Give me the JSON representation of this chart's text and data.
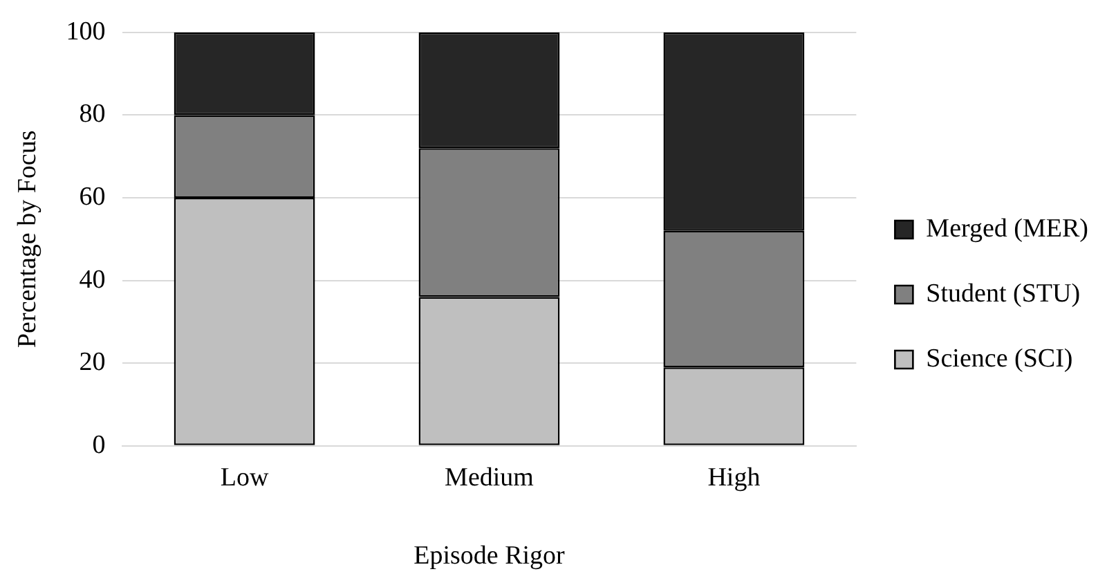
{
  "chart_data": {
    "type": "bar",
    "stacked": true,
    "xlabel": "Episode Rigor",
    "ylabel": "Percentage by Focus",
    "categories": [
      "Low",
      "Medium",
      "High"
    ],
    "series": [
      {
        "name": "Science (SCI)",
        "color": "#bfbfbf",
        "values": [
          60,
          36,
          19
        ]
      },
      {
        "name": "Student (STU)",
        "color": "#808080",
        "values": [
          20,
          36,
          33
        ]
      },
      {
        "name": "Merged (MER)",
        "color": "#262626",
        "values": [
          20,
          28,
          48
        ]
      }
    ],
    "ylim": [
      0,
      100
    ],
    "yticks": [
      0,
      20,
      40,
      60,
      80,
      100
    ],
    "grid": "y",
    "legend": "right"
  }
}
